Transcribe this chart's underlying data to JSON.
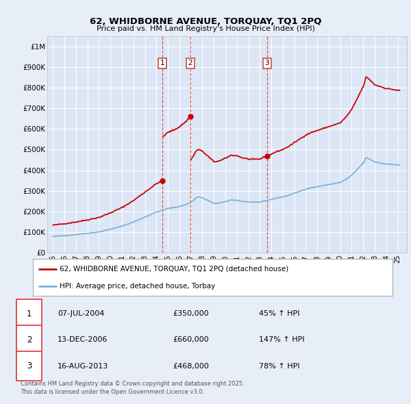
{
  "title_line1": "62, WHIDBORNE AVENUE, TORQUAY, TQ1 2PQ",
  "title_line2": "Price paid vs. HM Land Registry's House Price Index (HPI)",
  "bg_color": "#e8eef8",
  "plot_bg_color": "#dce6f5",
  "grid_color": "#ffffff",
  "red_color": "#cc0000",
  "blue_color": "#7aafd4",
  "dashed_line_color": "#dd4444",
  "ylim": [
    0,
    1050000
  ],
  "yticks": [
    0,
    100000,
    200000,
    300000,
    400000,
    500000,
    600000,
    700000,
    800000,
    900000,
    1000000
  ],
  "ytick_labels": [
    "£0",
    "£100K",
    "£200K",
    "£300K",
    "£400K",
    "£500K",
    "£600K",
    "£700K",
    "£800K",
    "£900K",
    "£1M"
  ],
  "sales": [
    {
      "label": "1",
      "date": "07-JUL-2004",
      "price": 350000,
      "year": 2004.52
    },
    {
      "label": "2",
      "date": "13-DEC-2006",
      "price": 660000,
      "year": 2006.95
    },
    {
      "label": "3",
      "date": "16-AUG-2013",
      "price": 468000,
      "year": 2013.62
    }
  ],
  "legend_label_red": "62, WHIDBORNE AVENUE, TORQUAY, TQ1 2PQ (detached house)",
  "legend_label_blue": "HPI: Average price, detached house, Torbay",
  "footnote": "Contains HM Land Registry data © Crown copyright and database right 2025.\nThis data is licensed under the Open Government Licence v3.0.",
  "table_rows": [
    {
      "num": "1",
      "date": "07-JUL-2004",
      "price": "£350,000",
      "hpi": "45% ↑ HPI"
    },
    {
      "num": "2",
      "date": "13-DEC-2006",
      "price": "£660,000",
      "hpi": "147% ↑ HPI"
    },
    {
      "num": "3",
      "date": "16-AUG-2013",
      "price": "£468,000",
      "hpi": "78% ↑ HPI"
    }
  ],
  "xlim_start": 1994.5,
  "xlim_end": 2025.8,
  "xtick_years": [
    1995,
    1996,
    1997,
    1998,
    1999,
    2000,
    2001,
    2002,
    2003,
    2004,
    2005,
    2006,
    2007,
    2008,
    2009,
    2010,
    2011,
    2012,
    2013,
    2014,
    2015,
    2016,
    2017,
    2018,
    2019,
    2020,
    2021,
    2022,
    2023,
    2024,
    2025
  ]
}
